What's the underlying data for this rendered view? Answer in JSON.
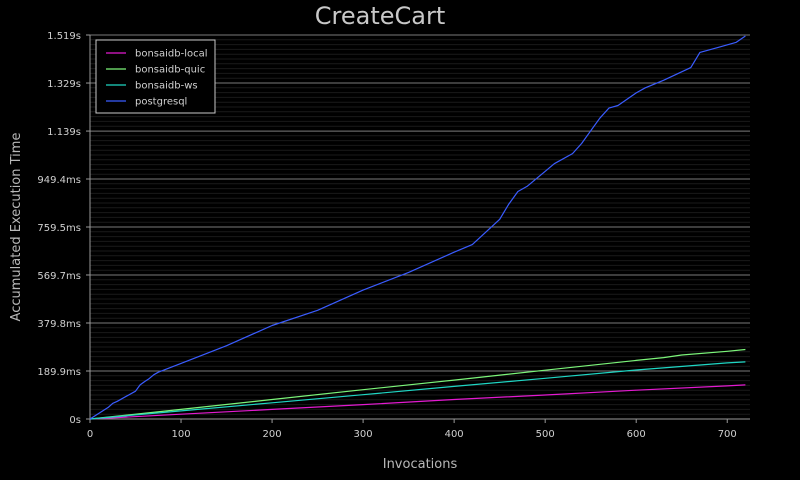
{
  "chart_data": {
    "type": "line",
    "title": "CreateCart",
    "xlabel": "Invocations",
    "ylabel": "Accumulated Execution Time",
    "xlim": [
      0,
      725
    ],
    "ylim": [
      0,
      1.519
    ],
    "y_unit": "s",
    "x_ticks": [
      0,
      100,
      200,
      300,
      400,
      500,
      600,
      700
    ],
    "x_tick_labels": [
      "0",
      "100",
      "200",
      "300",
      "400",
      "500",
      "600",
      "700"
    ],
    "y_ticks": [
      0,
      0.1899,
      0.3798,
      0.5697,
      0.7595,
      0.9494,
      1.139,
      1.329,
      1.519
    ],
    "y_tick_labels": [
      "0s",
      "189.9ms",
      "379.8ms",
      "569.7ms",
      "759.5ms",
      "949.4ms",
      "1.139s",
      "1.329s",
      "1.519s"
    ],
    "grid": true,
    "legend_position": "top-left",
    "series": [
      {
        "name": "bonsaidb-local",
        "color": "#e31ad0",
        "x": [
          0,
          100,
          200,
          300,
          400,
          500,
          600,
          700,
          720
        ],
        "y": [
          0,
          0.019,
          0.038,
          0.057,
          0.077,
          0.095,
          0.114,
          0.131,
          0.135
        ]
      },
      {
        "name": "bonsaidb-quic",
        "color": "#7cf57a",
        "x": [
          0,
          100,
          200,
          300,
          400,
          500,
          600,
          630,
          650,
          700,
          720
        ],
        "y": [
          0,
          0.038,
          0.077,
          0.116,
          0.154,
          0.193,
          0.232,
          0.243,
          0.253,
          0.268,
          0.275
        ]
      },
      {
        "name": "bonsaidb-ws",
        "color": "#1fd6c4",
        "x": [
          0,
          100,
          200,
          300,
          400,
          500,
          600,
          700,
          720
        ],
        "y": [
          0,
          0.032,
          0.064,
          0.096,
          0.129,
          0.161,
          0.194,
          0.222,
          0.226
        ]
      },
      {
        "name": "postgresql",
        "color": "#3a5cff",
        "x": [
          0,
          20,
          25,
          30,
          50,
          55,
          60,
          65,
          70,
          75,
          100,
          150,
          200,
          250,
          300,
          350,
          400,
          420,
          450,
          460,
          470,
          480,
          500,
          510,
          530,
          540,
          550,
          560,
          570,
          580,
          600,
          610,
          630,
          660,
          670,
          690,
          710,
          720
        ],
        "y": [
          0,
          0.046,
          0.062,
          0.07,
          0.11,
          0.135,
          0.148,
          0.16,
          0.175,
          0.185,
          0.22,
          0.29,
          0.37,
          0.43,
          0.51,
          0.58,
          0.66,
          0.69,
          0.79,
          0.85,
          0.9,
          0.92,
          0.98,
          1.01,
          1.05,
          1.09,
          1.14,
          1.19,
          1.23,
          1.24,
          1.29,
          1.31,
          1.34,
          1.39,
          1.45,
          1.47,
          1.49,
          1.515
        ]
      }
    ]
  }
}
